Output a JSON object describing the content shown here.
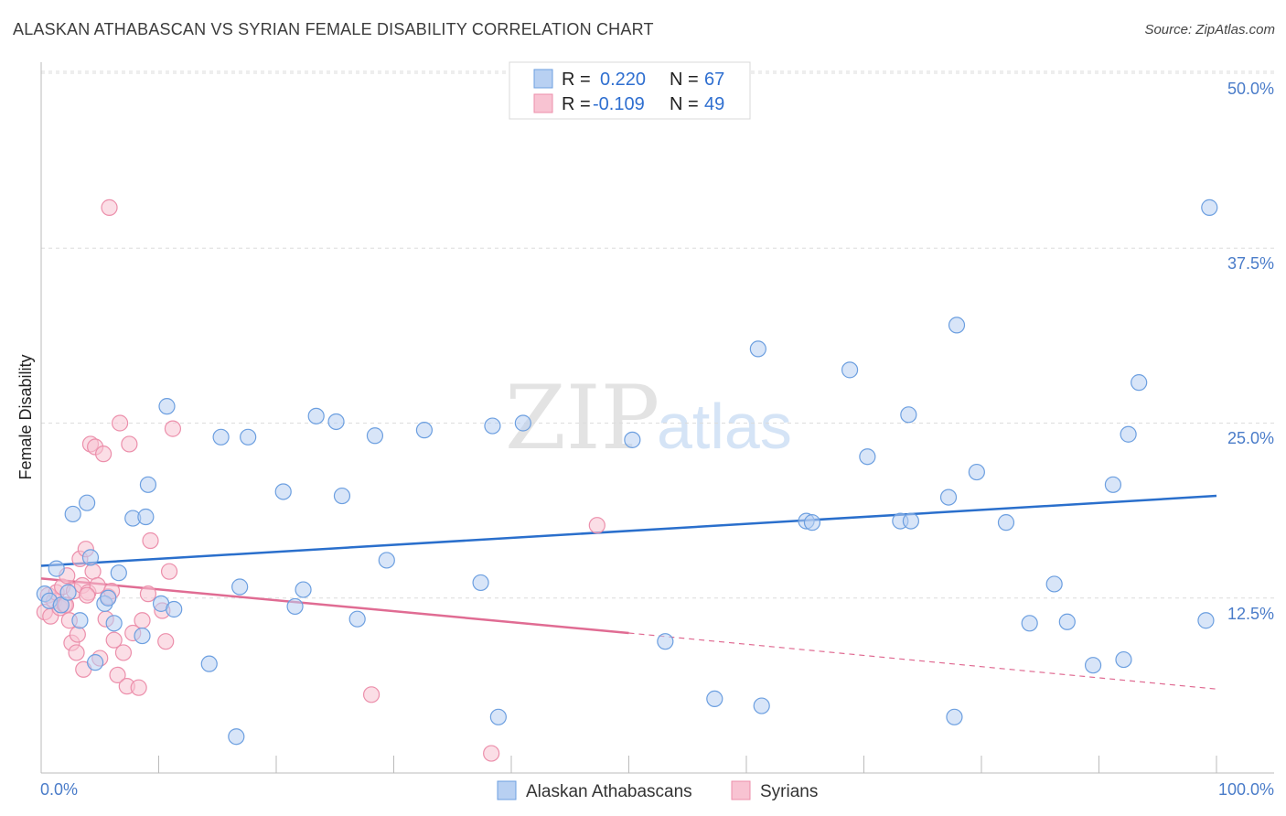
{
  "header": {
    "title": "ALASKAN ATHABASCAN VS SYRIAN FEMALE DISABILITY CORRELATION CHART",
    "source": "Source: ZipAtlas.com"
  },
  "watermark": {
    "zip": "ZIP",
    "atlas": "atlas"
  },
  "colors": {
    "blue_fill": "#b8d0f2",
    "blue_stroke": "#6c9fe0",
    "blue_line": "#2a6fcc",
    "pink_fill": "#f8c3d2",
    "pink_stroke": "#ec8fab",
    "pink_line": "#e06c93",
    "tick_text": "#4a7cc9"
  },
  "legend": {
    "rows": [
      {
        "r_label": "R =",
        "r_value": "0.220",
        "n_label": "N =",
        "n_value": "67"
      },
      {
        "r_label": "R =",
        "r_value": "-0.109",
        "n_label": "N =",
        "n_value": "49"
      }
    ]
  },
  "chart_data": {
    "type": "scatter",
    "title": "ALASKAN ATHABASCAN VS SYRIAN FEMALE DISABILITY CORRELATION CHART",
    "xlabel": "",
    "ylabel": "Female Disability",
    "xlim": [
      0,
      100
    ],
    "ylim": [
      0,
      50
    ],
    "x_tick_labels": [
      "0.0%",
      "100.0%"
    ],
    "y_ticks": [
      12.5,
      25.0,
      37.5,
      50.0
    ],
    "y_tick_labels": [
      "12.5%",
      "25.0%",
      "37.5%",
      "50.0%"
    ],
    "grid": true,
    "legend_position": "top-center",
    "series": [
      {
        "name": "Alaskan Athabascans",
        "R": 0.22,
        "N": 67,
        "trend": {
          "x": [
            0,
            100
          ],
          "y": [
            14.8,
            19.8
          ]
        },
        "points": [
          [
            0.3,
            12.8
          ],
          [
            0.7,
            12.3
          ],
          [
            1.3,
            14.6
          ],
          [
            1.7,
            12.0
          ],
          [
            2.3,
            12.9
          ],
          [
            2.7,
            18.5
          ],
          [
            3.3,
            10.9
          ],
          [
            3.9,
            19.3
          ],
          [
            4.2,
            15.4
          ],
          [
            4.6,
            7.9
          ],
          [
            5.4,
            12.1
          ],
          [
            5.7,
            12.5
          ],
          [
            6.2,
            10.7
          ],
          [
            6.6,
            14.3
          ],
          [
            7.8,
            18.2
          ],
          [
            8.6,
            9.8
          ],
          [
            8.9,
            18.3
          ],
          [
            9.1,
            20.6
          ],
          [
            10.2,
            12.1
          ],
          [
            10.7,
            26.2
          ],
          [
            11.3,
            11.7
          ],
          [
            14.3,
            7.8
          ],
          [
            15.3,
            24.0
          ],
          [
            16.6,
            2.6
          ],
          [
            16.9,
            13.3
          ],
          [
            17.6,
            24.0
          ],
          [
            20.6,
            20.1
          ],
          [
            21.6,
            11.9
          ],
          [
            22.3,
            13.1
          ],
          [
            23.4,
            25.5
          ],
          [
            25.1,
            25.1
          ],
          [
            25.6,
            19.8
          ],
          [
            26.9,
            11.0
          ],
          [
            28.4,
            24.1
          ],
          [
            29.4,
            15.2
          ],
          [
            32.6,
            24.5
          ],
          [
            37.4,
            13.6
          ],
          [
            38.4,
            24.8
          ],
          [
            38.9,
            4.0
          ],
          [
            41.0,
            25.0
          ],
          [
            50.3,
            23.8
          ],
          [
            53.1,
            9.4
          ],
          [
            57.3,
            5.3
          ],
          [
            61.0,
            30.3
          ],
          [
            61.3,
            4.8
          ],
          [
            65.1,
            18.0
          ],
          [
            65.6,
            17.9
          ],
          [
            68.8,
            28.8
          ],
          [
            70.3,
            22.6
          ],
          [
            73.1,
            18.0
          ],
          [
            73.8,
            25.6
          ],
          [
            74.0,
            18.0
          ],
          [
            77.2,
            19.7
          ],
          [
            77.7,
            4.0
          ],
          [
            77.9,
            32.0
          ],
          [
            79.6,
            21.5
          ],
          [
            82.1,
            17.9
          ],
          [
            84.1,
            10.7
          ],
          [
            86.2,
            13.5
          ],
          [
            87.3,
            10.8
          ],
          [
            89.5,
            7.7
          ],
          [
            91.2,
            20.6
          ],
          [
            92.1,
            8.1
          ],
          [
            92.5,
            24.2
          ],
          [
            93.4,
            27.9
          ],
          [
            99.1,
            10.9
          ],
          [
            99.4,
            40.4
          ]
        ]
      },
      {
        "name": "Syrians",
        "R": -0.109,
        "N": 49,
        "trend_solid": {
          "x": [
            0,
            50
          ],
          "y": [
            13.9,
            10.0
          ]
        },
        "trend_dashed": {
          "x": [
            50,
            100
          ],
          "y": [
            10.0,
            6.0
          ]
        },
        "points": [
          [
            0.3,
            11.5
          ],
          [
            0.6,
            12.7
          ],
          [
            0.8,
            11.2
          ],
          [
            1.1,
            12.3
          ],
          [
            1.3,
            12.9
          ],
          [
            1.6,
            11.8
          ],
          [
            1.8,
            13.3
          ],
          [
            2.0,
            12.0
          ],
          [
            2.2,
            14.1
          ],
          [
            2.4,
            10.9
          ],
          [
            2.6,
            9.3
          ],
          [
            2.8,
            13.0
          ],
          [
            3.0,
            8.6
          ],
          [
            3.1,
            9.9
          ],
          [
            3.3,
            15.3
          ],
          [
            3.5,
            13.4
          ],
          [
            3.6,
            7.4
          ],
          [
            3.8,
            16.0
          ],
          [
            4.0,
            12.9
          ],
          [
            4.2,
            23.5
          ],
          [
            4.4,
            14.4
          ],
          [
            4.6,
            23.3
          ],
          [
            4.8,
            13.4
          ],
          [
            5.0,
            8.2
          ],
          [
            5.3,
            22.8
          ],
          [
            5.5,
            11.0
          ],
          [
            5.7,
            12.6
          ],
          [
            6.0,
            13.0
          ],
          [
            6.2,
            9.5
          ],
          [
            6.5,
            7.0
          ],
          [
            6.7,
            25.0
          ],
          [
            7.0,
            8.6
          ],
          [
            7.3,
            6.2
          ],
          [
            7.5,
            23.5
          ],
          [
            7.8,
            10.0
          ],
          [
            8.3,
            6.1
          ],
          [
            8.6,
            10.9
          ],
          [
            9.1,
            12.8
          ],
          [
            9.3,
            16.6
          ],
          [
            10.3,
            11.6
          ],
          [
            10.6,
            9.4
          ],
          [
            10.9,
            14.4
          ],
          [
            11.2,
            24.6
          ],
          [
            28.1,
            5.6
          ],
          [
            38.3,
            1.4
          ],
          [
            47.3,
            17.7
          ],
          [
            5.8,
            40.4
          ],
          [
            2.1,
            12.0
          ],
          [
            3.9,
            12.7
          ]
        ]
      }
    ]
  }
}
